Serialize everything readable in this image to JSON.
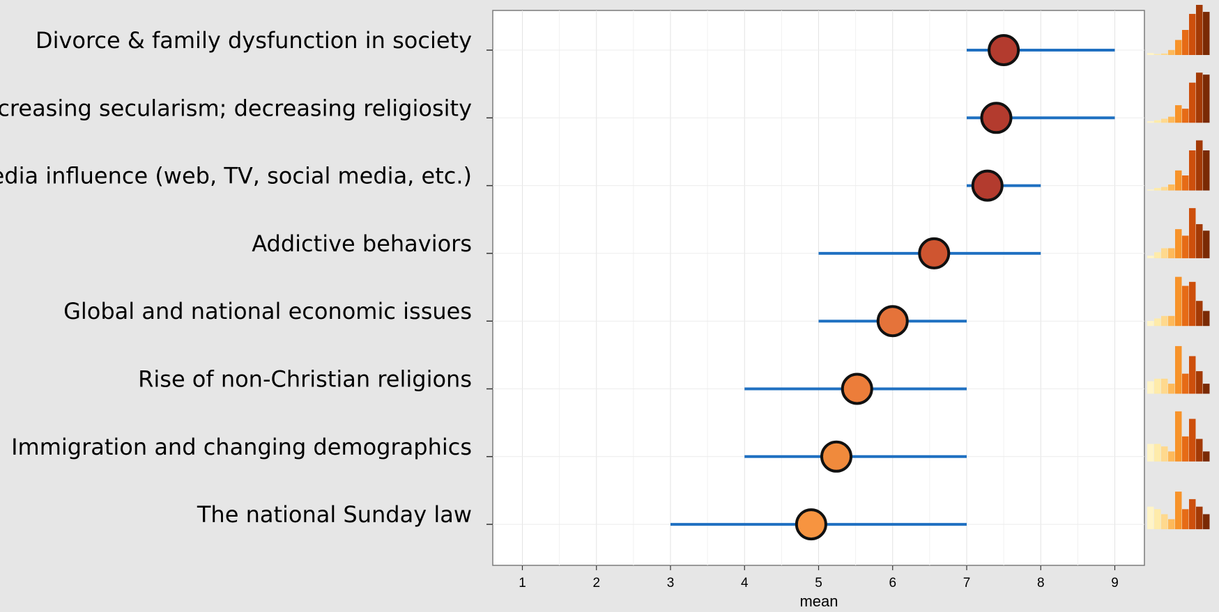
{
  "chart_data": {
    "type": "dot-interval",
    "title": "",
    "xlabel": "mean",
    "ylabel": "",
    "xlim": [
      0.6,
      9.4
    ],
    "x_ticks": [
      1,
      2,
      3,
      4,
      5,
      6,
      7,
      8,
      9
    ],
    "grid": true,
    "categories": [
      "Divorce & family dysfunction in society",
      "Increasing secularism; decreasing religiosity",
      "Media influence (web, TV, social media, etc.)",
      "Addictive behaviors",
      "Global and national economic issues",
      "Rise of non-Christian religions",
      "Immigration and changing demographics",
      "The national Sunday law"
    ],
    "means": [
      7.5,
      7.4,
      7.28,
      6.56,
      6.0,
      5.52,
      5.24,
      4.9
    ],
    "interval_low": [
      7,
      7,
      7,
      5,
      5,
      4,
      4,
      3
    ],
    "interval_high": [
      9,
      9,
      8,
      8,
      7,
      7,
      7,
      7
    ],
    "histograms": [
      [
        0.04,
        0.02,
        0.03,
        0.1,
        0.3,
        0.5,
        0.82,
        1.0,
        0.86
      ],
      [
        0.03,
        0.05,
        0.08,
        0.12,
        0.35,
        0.28,
        0.8,
        1.0,
        0.96
      ],
      [
        0.02,
        0.05,
        0.07,
        0.12,
        0.4,
        0.3,
        0.8,
        1.0,
        0.8
      ],
      [
        0.05,
        0.12,
        0.2,
        0.2,
        0.58,
        0.45,
        1.0,
        0.68,
        0.55
      ],
      [
        0.1,
        0.15,
        0.2,
        0.2,
        0.98,
        0.8,
        0.88,
        0.5,
        0.3
      ],
      [
        0.25,
        0.3,
        0.3,
        0.2,
        0.95,
        0.4,
        0.75,
        0.45,
        0.2
      ],
      [
        0.35,
        0.35,
        0.3,
        0.2,
        1.0,
        0.5,
        0.85,
        0.45,
        0.2
      ],
      [
        0.45,
        0.4,
        0.3,
        0.2,
        0.75,
        0.4,
        0.6,
        0.45,
        0.3
      ]
    ],
    "dot_colors": [
      "#b33b2e",
      "#b33b2e",
      "#b33b2e",
      "#cf5530",
      "#e5733a",
      "#ec7d3a",
      "#f08a3c",
      "#f79440"
    ],
    "interval_color": "#1f70c1",
    "histogram_colors": [
      "#fff4c7",
      "#feebaa",
      "#fed98e",
      "#fdb95a",
      "#f7932a",
      "#e66b16",
      "#cd4f0c",
      "#a33a06",
      "#7a2a04"
    ]
  }
}
